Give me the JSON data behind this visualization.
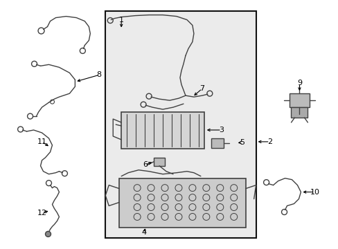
{
  "background_color": "#ffffff",
  "diagram_bg": "#ebebeb",
  "line_color": "#404040",
  "border_color": "#111111",
  "text_color": "#000000",
  "figsize": [
    4.89,
    3.6
  ],
  "dpi": 100
}
